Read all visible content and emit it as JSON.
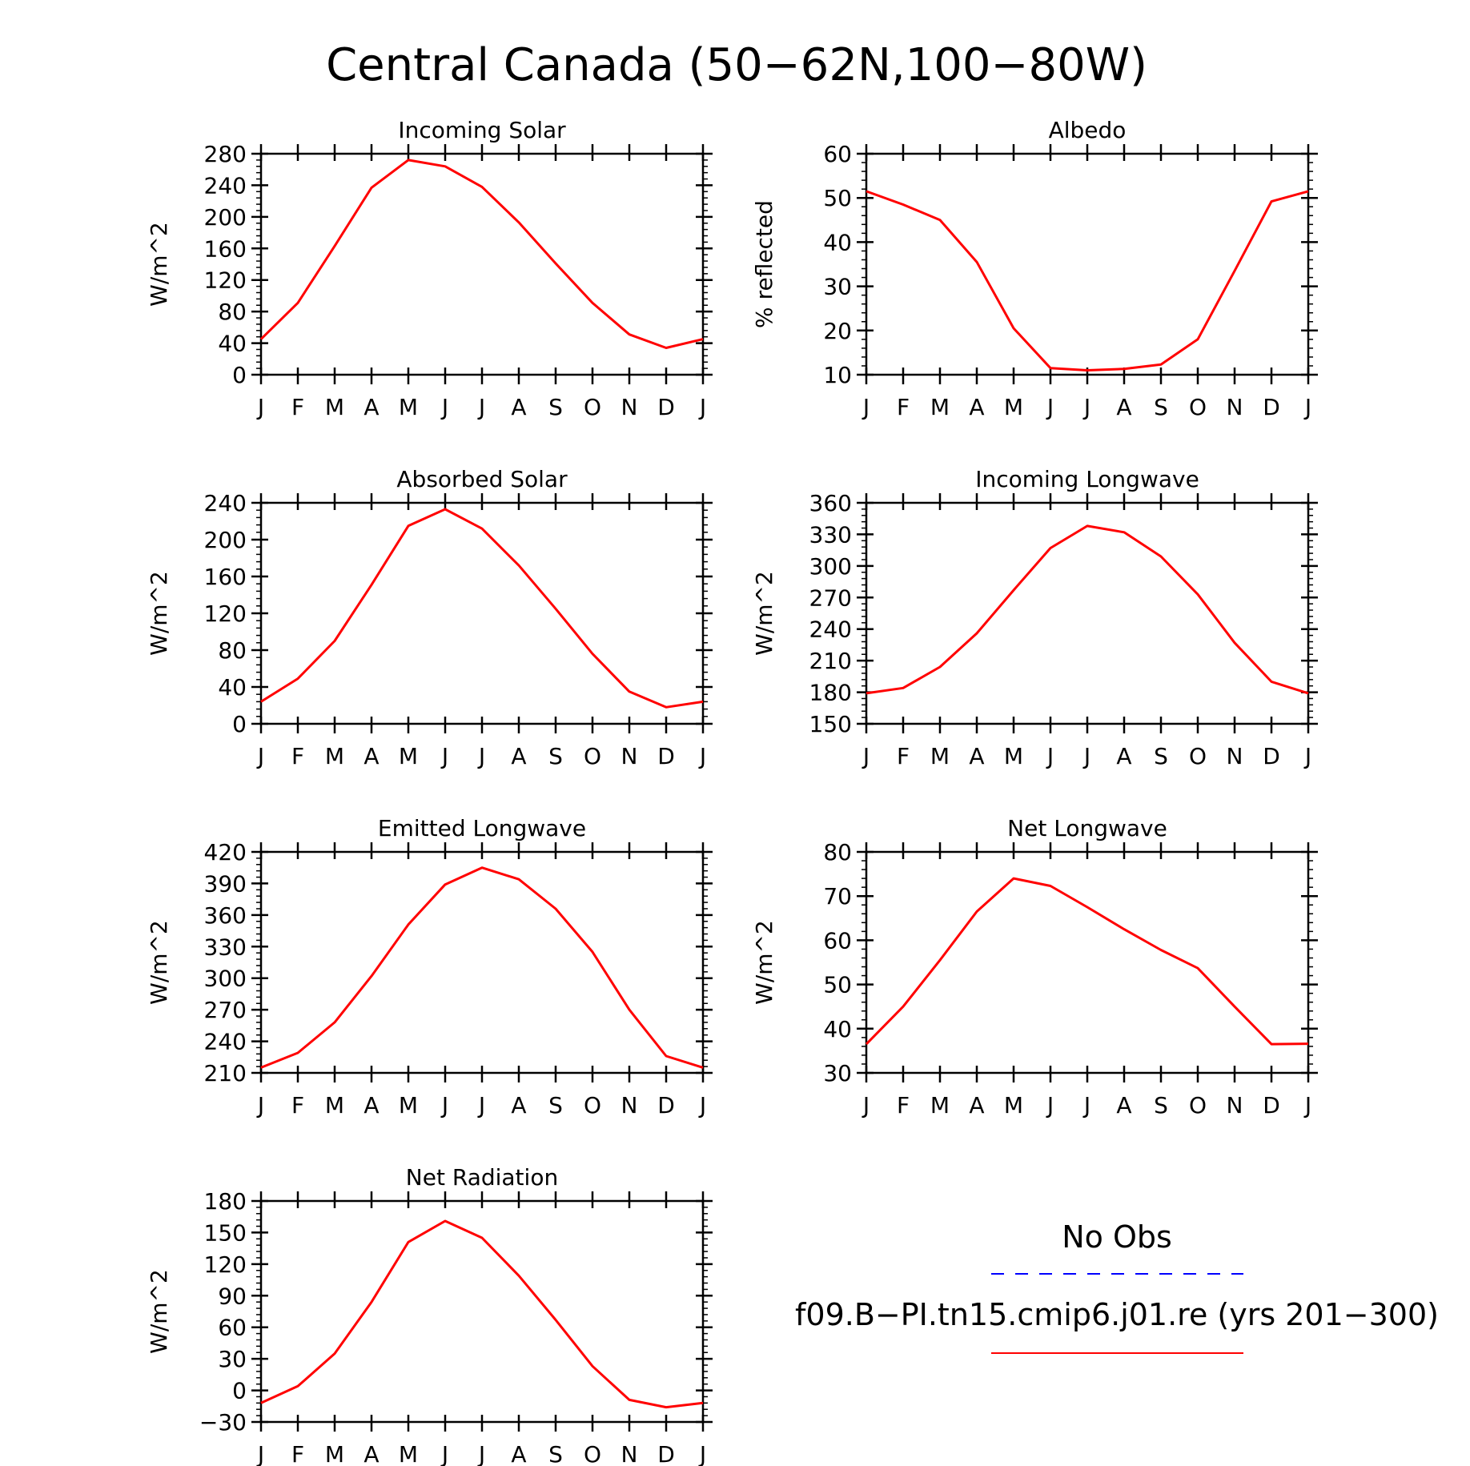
{
  "figure": {
    "title": "Central Canada (50−62N,100−80W)"
  },
  "months": [
    "J",
    "F",
    "M",
    "A",
    "M",
    "J",
    "J",
    "A",
    "S",
    "O",
    "N",
    "D",
    "J"
  ],
  "legend": {
    "obs_label": "No Obs",
    "model_label": "f09.B−PI.tn15.cmip6.j01.re (yrs 201−300)",
    "obs_color": "#0000ff",
    "model_color": "#ff0000"
  },
  "chart_data": [
    {
      "type": "line",
      "title": "Incoming Solar",
      "ylabel": "W/m^2",
      "ylim": [
        0,
        280
      ],
      "yticks": [
        0,
        40,
        80,
        120,
        160,
        200,
        240,
        280
      ],
      "ytick_labels": [
        "0",
        "40",
        "80",
        "120",
        "160",
        "200",
        "240",
        "280"
      ],
      "series": [
        {
          "values": [
            45,
            91,
            163,
            237,
            272,
            264,
            238,
            193,
            141,
            91,
            51,
            34,
            45
          ],
          "color": "#ff0000"
        }
      ]
    },
    {
      "type": "line",
      "title": "Albedo",
      "ylabel": "% reflected",
      "ylim": [
        10,
        60
      ],
      "yticks": [
        10,
        20,
        30,
        40,
        50,
        60
      ],
      "ytick_labels": [
        "10",
        "20",
        "30",
        "40",
        "50",
        "60"
      ],
      "series": [
        {
          "values": [
            51.5,
            48.5,
            45,
            35.5,
            20.5,
            11.5,
            11,
            11.3,
            12.3,
            18,
            33.5,
            49.2,
            51.5
          ],
          "color": "#ff0000"
        }
      ]
    },
    {
      "type": "line",
      "title": "Absorbed Solar",
      "ylabel": "W/m^2",
      "ylim": [
        0,
        240
      ],
      "yticks": [
        0,
        40,
        80,
        120,
        160,
        200,
        240
      ],
      "ytick_labels": [
        "0",
        "40",
        "80",
        "120",
        "160",
        "200",
        "240"
      ],
      "series": [
        {
          "values": [
            24,
            49,
            90,
            151,
            215,
            233,
            212,
            172,
            125,
            76,
            35,
            18,
            24
          ],
          "color": "#ff0000"
        }
      ]
    },
    {
      "type": "line",
      "title": "Incoming Longwave",
      "ylabel": "W/m^2",
      "ylim": [
        150,
        360
      ],
      "yticks": [
        150,
        180,
        210,
        240,
        270,
        300,
        330,
        360
      ],
      "ytick_labels": [
        "150",
        "180",
        "210",
        "240",
        "270",
        "300",
        "330",
        "360"
      ],
      "series": [
        {
          "values": [
            179,
            184,
            204,
            236,
            277,
            317,
            338,
            332,
            309,
            273,
            227,
            190,
            179
          ],
          "color": "#ff0000"
        }
      ]
    },
    {
      "type": "line",
      "title": "Emitted Longwave",
      "ylabel": "W/m^2",
      "ylim": [
        210,
        420
      ],
      "yticks": [
        210,
        240,
        270,
        300,
        330,
        360,
        390,
        420
      ],
      "ytick_labels": [
        "210",
        "240",
        "270",
        "300",
        "330",
        "360",
        "390",
        "420"
      ],
      "series": [
        {
          "values": [
            215,
            229,
            258,
            302,
            351,
            389,
            405,
            394,
            366,
            325,
            270,
            226,
            215
          ],
          "color": "#ff0000"
        }
      ]
    },
    {
      "type": "line",
      "title": "Net Longwave",
      "ylabel": "W/m^2",
      "ylim": [
        30,
        80
      ],
      "yticks": [
        30,
        40,
        50,
        60,
        70,
        80
      ],
      "ytick_labels": [
        "30",
        "40",
        "50",
        "60",
        "70",
        "80"
      ],
      "series": [
        {
          "values": [
            36.5,
            45,
            55.5,
            66.5,
            74,
            72.3,
            67.5,
            62.5,
            57.8,
            53.7,
            45,
            36.5,
            36.6
          ],
          "color": "#ff0000"
        }
      ]
    },
    {
      "type": "line",
      "title": "Net Radiation",
      "ylabel": "W/m^2",
      "ylim": [
        -30,
        180
      ],
      "yticks": [
        -30,
        0,
        30,
        60,
        90,
        120,
        150,
        180
      ],
      "ytick_labels": [
        "−30",
        "0",
        "30",
        "60",
        "90",
        "120",
        "150",
        "180"
      ],
      "series": [
        {
          "values": [
            -12,
            4,
            35,
            84,
            141,
            161,
            145,
            109,
            67,
            23,
            -9,
            -16,
            -12
          ],
          "color": "#ff0000"
        }
      ]
    }
  ]
}
